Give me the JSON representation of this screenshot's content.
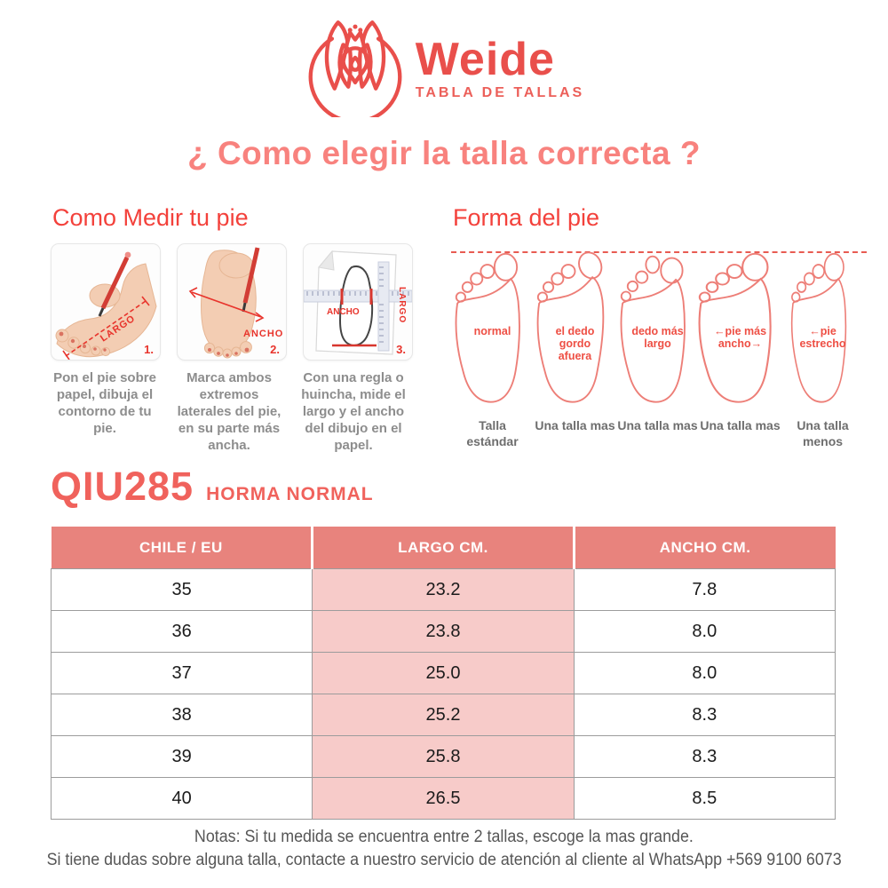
{
  "brand": {
    "name": "Weide",
    "tagline": "TABLA DE TALLAS"
  },
  "title": "¿ Como elegir la talla correcta ?",
  "measure_section": {
    "heading": "Como Medir tu pie",
    "steps": [
      {
        "num": "1.",
        "labels": [
          "LARGO"
        ],
        "caption": "Pon el pie sobre papel, dibuja el contorno de tu pie."
      },
      {
        "num": "2.",
        "labels": [
          "ANCHO"
        ],
        "caption": "Marca ambos extremos laterales del pie, en su parte más ancha."
      },
      {
        "num": "3.",
        "labels": [
          "ANCHO",
          "LARGO"
        ],
        "caption": "Con una regla o huincha, mide el largo y el ancho del dibujo en el papel."
      }
    ]
  },
  "shape_section": {
    "heading": "Forma del pie",
    "shapes": [
      {
        "label": "normal",
        "result": "Talla estándar"
      },
      {
        "label": "el dedo gordo afuera",
        "result": "Una talla mas"
      },
      {
        "label": "dedo más largo",
        "result": "Una talla mas"
      },
      {
        "label": "pie más ancho",
        "result": "Una talla mas"
      },
      {
        "label": "pie estrecho",
        "result": "Una talla menos"
      }
    ]
  },
  "product": {
    "code": "QIU285",
    "fit": "HORMA NORMAL"
  },
  "size_table": {
    "columns": [
      "CHILE / EU",
      "LARGO CM.",
      "ANCHO CM."
    ],
    "rows": [
      [
        "35",
        "23.2",
        "7.8"
      ],
      [
        "36",
        "23.8",
        "8.0"
      ],
      [
        "37",
        "25.0",
        "8.0"
      ],
      [
        "38",
        "25.2",
        "8.3"
      ],
      [
        "39",
        "25.8",
        "8.3"
      ],
      [
        "40",
        "26.5",
        "8.5"
      ]
    ]
  },
  "notes": {
    "line1": "Notas: Si tu medida se encuentra entre 2 tallas, escoge la mas grande.",
    "line2": "Si tiene dudas sobre alguna talla, contacte a nuestro servicio de atención al cliente al WhatsApp +569 9100 6073"
  },
  "icons": {
    "arrow_left": "←",
    "arrow_right": "→"
  },
  "colors": {
    "brand_red": "#e94f4b",
    "title_pink": "#f8827e",
    "heading_red": "#f3413b",
    "foot_outline": "#ed7e77",
    "annotation_red": "#e8342c",
    "table_header_bg": "#e8837d",
    "table_pink_cell": "#f7cbc9",
    "caption_gray": "#8d8d8d",
    "note_gray": "#565656"
  }
}
